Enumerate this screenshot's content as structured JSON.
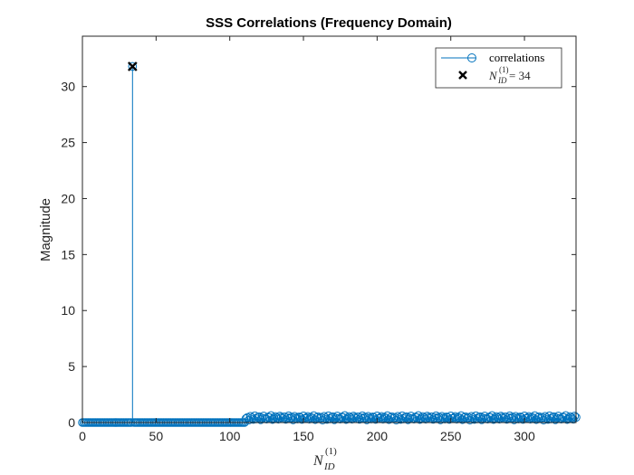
{
  "chart_data": {
    "type": "stem",
    "title": "SSS Correlations (Frequency Domain)",
    "xlabel": {
      "base": "N",
      "superscript": "(1)",
      "subscript": "ID"
    },
    "ylabel": "Magnitude",
    "xlim": [
      0,
      335
    ],
    "ylim": [
      0,
      34.5
    ],
    "xticks": [
      0,
      50,
      100,
      150,
      200,
      250,
      300
    ],
    "yticks": [
      0,
      5,
      10,
      15,
      20,
      25,
      30
    ],
    "grid": false,
    "legend_position": "top-right",
    "series_color": "#0072BD",
    "marker_color": "#000000",
    "legend": [
      {
        "label": "correlations",
        "style": "line-circle"
      },
      {
        "label_base": "N",
        "label_superscript": "(1)",
        "label_subscript": "ID",
        "label_rest": " = 34",
        "style": "x-marker"
      }
    ],
    "zero_range": [
      0,
      110
    ],
    "peak": {
      "x": 34,
      "y": 31.8
    },
    "noise_range": [
      111,
      335
    ],
    "noise_values": [
      0.35,
      0.45,
      0.22,
      0.55,
      0.41,
      0.28,
      0.6,
      0.33,
      0.47,
      0.52,
      0.25,
      0.4,
      0.58,
      0.36,
      0.31,
      0.49,
      0.44,
      0.62,
      0.27,
      0.38,
      0.53,
      0.42,
      0.3,
      0.57,
      0.46,
      0.34,
      0.51,
      0.29,
      0.43,
      0.6,
      0.37,
      0.48,
      0.24,
      0.55,
      0.4,
      0.32,
      0.5,
      0.45,
      0.28,
      0.59,
      0.35,
      0.42,
      0.54,
      0.3,
      0.47,
      0.39,
      0.61,
      0.26,
      0.44,
      0.52
    ],
    "peak_marker": {
      "x": 34,
      "y": 31.8
    }
  }
}
